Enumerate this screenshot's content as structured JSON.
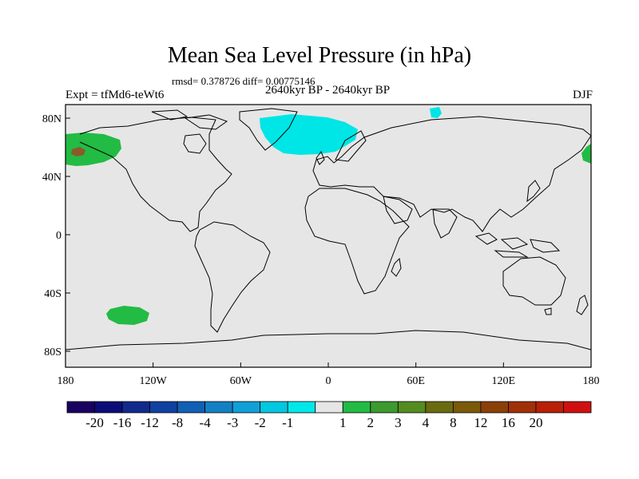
{
  "title": "Mean Sea Level Pressure (in hPa)",
  "stats": "rmsd= 0.378726 diff= 0.00775146",
  "period": "2640kyr BP - 2640kyr BP",
  "experiment": "Expt = tfMd6-teWt6",
  "season": "DJF",
  "colors": {
    "background": "#e6e6e6",
    "coastline": "#000000",
    "neg_minus1": "#00e5e5",
    "pos_1_2": "#22bb44",
    "pos_3_4": "#8b5a2b"
  },
  "map": {
    "lat_ticks": [
      "80N",
      "40N",
      "0",
      "40S",
      "80S"
    ],
    "lon_ticks": [
      "180",
      "120W",
      "60W",
      "0",
      "60E",
      "120E",
      "180"
    ]
  },
  "colorbar": {
    "colors": [
      "#1a0060",
      "#0c0c78",
      "#102a8c",
      "#1040a0",
      "#1060b4",
      "#1480c4",
      "#10a0d8",
      "#00c8e0",
      "#00e8e8",
      "#e6e6e6",
      "#22bb44",
      "#3c9a2e",
      "#548c20",
      "#6a6a10",
      "#7a5a08",
      "#8a4008",
      "#a03008",
      "#b82008",
      "#d01010"
    ],
    "labels": [
      "-20",
      "-16",
      "-12",
      "-8",
      "-4",
      "-3",
      "-2",
      "-1",
      "1",
      "2",
      "3",
      "4",
      "8",
      "12",
      "16",
      "20"
    ]
  }
}
